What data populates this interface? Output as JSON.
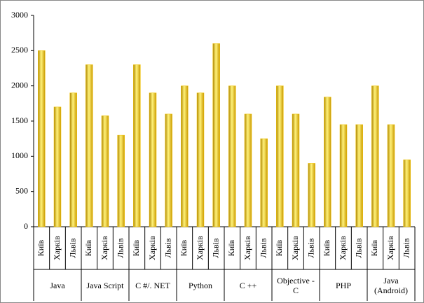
{
  "chart_data": {
    "type": "bar",
    "categories": [
      "Київ",
      "Харків",
      "Львів",
      "Київ",
      "Харків",
      "Львів",
      "Київ",
      "Харків",
      "Львів",
      "Київ",
      "Харків",
      "Львів",
      "Київ",
      "Харків",
      "Львів",
      "Київ",
      "Харків",
      "Львів",
      "Київ",
      "Харків",
      "Львів",
      "Київ",
      "Харків",
      "Львів"
    ],
    "category_groups": [
      "Java",
      "Java Script",
      "C #/. NET",
      "Python",
      "C ++",
      "Objective - C",
      "PHP",
      "Java (Android)"
    ],
    "values": [
      2500,
      1700,
      1900,
      2300,
      1575,
      1300,
      2300,
      1900,
      1600,
      2000,
      1900,
      2600,
      2000,
      1600,
      1250,
      2000,
      1600,
      900,
      1840,
      1450,
      1450,
      2000,
      1450,
      950
    ],
    "color": "#f2c200",
    "ylim": [
      0,
      3000
    ],
    "yticks": [
      0,
      500,
      1000,
      1500,
      2000,
      2500,
      3000
    ],
    "grid": false
  }
}
